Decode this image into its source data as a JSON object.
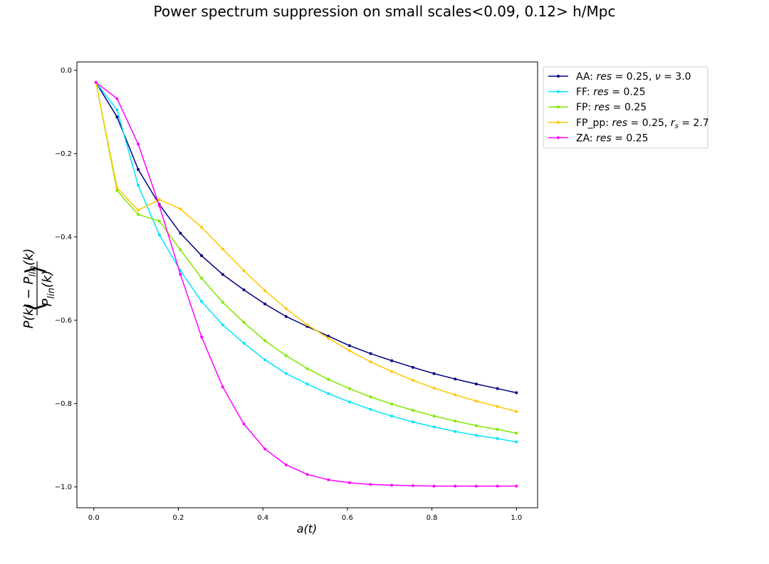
{
  "chart_data": {
    "type": "line",
    "title": "Power spectrum suppression on small scales<0.09, 0.12> h/Mpc",
    "xlabel": "a(t)",
    "ylabel": "⟨(P(k) − P_lin(k)) / P_lin(k)⟩",
    "xlim": [
      -0.04,
      1.05
    ],
    "ylim": [
      -1.05,
      0.02
    ],
    "xticks": [
      "0.0",
      "0.2",
      "0.4",
      "0.6",
      "0.8",
      "1.0"
    ],
    "yticks": [
      "0.0",
      "−0.2",
      "−0.4",
      "−0.6",
      "−0.8",
      "−1.0"
    ],
    "grid": false,
    "legend_position": "outside upper right",
    "x": [
      0.005,
      0.055,
      0.105,
      0.155,
      0.205,
      0.255,
      0.305,
      0.355,
      0.405,
      0.455,
      0.505,
      0.555,
      0.605,
      0.655,
      0.705,
      0.755,
      0.805,
      0.855,
      0.905,
      0.955,
      1.0
    ],
    "series": [
      {
        "name": "AA: res = 0.25, ν = 3.0",
        "color": "#000080",
        "values": [
          -0.029,
          -0.112,
          -0.238,
          -0.322,
          -0.391,
          -0.445,
          -0.49,
          -0.527,
          -0.561,
          -0.591,
          -0.615,
          -0.638,
          -0.661,
          -0.68,
          -0.697,
          -0.713,
          -0.728,
          -0.741,
          -0.753,
          -0.764,
          -0.774
        ]
      },
      {
        "name": "FF: res = 0.25",
        "color": "#00e5ff",
        "values": [
          -0.029,
          -0.095,
          -0.276,
          -0.395,
          -0.481,
          -0.555,
          -0.611,
          -0.655,
          -0.695,
          -0.728,
          -0.753,
          -0.776,
          -0.796,
          -0.814,
          -0.83,
          -0.844,
          -0.856,
          -0.867,
          -0.876,
          -0.884,
          -0.892
        ]
      },
      {
        "name": "FP: res = 0.25",
        "color": "#7fe800",
        "values": [
          -0.029,
          -0.289,
          -0.346,
          -0.362,
          -0.431,
          -0.499,
          -0.557,
          -0.605,
          -0.649,
          -0.685,
          -0.716,
          -0.742,
          -0.764,
          -0.784,
          -0.801,
          -0.816,
          -0.83,
          -0.842,
          -0.853,
          -0.862,
          -0.871
        ]
      },
      {
        "name": "FP_pp: res = 0.25, r_s = 2.7",
        "color": "#ffc800",
        "values": [
          -0.029,
          -0.282,
          -0.336,
          -0.31,
          -0.333,
          -0.377,
          -0.429,
          -0.481,
          -0.529,
          -0.572,
          -0.611,
          -0.643,
          -0.673,
          -0.7,
          -0.723,
          -0.744,
          -0.763,
          -0.779,
          -0.794,
          -0.807,
          -0.819
        ]
      },
      {
        "name": "ZA: res = 0.25",
        "color": "#ff00ff",
        "values": [
          -0.029,
          -0.068,
          -0.177,
          -0.325,
          -0.49,
          -0.64,
          -0.76,
          -0.849,
          -0.909,
          -0.947,
          -0.97,
          -0.983,
          -0.99,
          -0.994,
          -0.996,
          -0.997,
          -0.998,
          -0.998,
          -0.998,
          -0.998,
          -0.998
        ]
      }
    ]
  }
}
